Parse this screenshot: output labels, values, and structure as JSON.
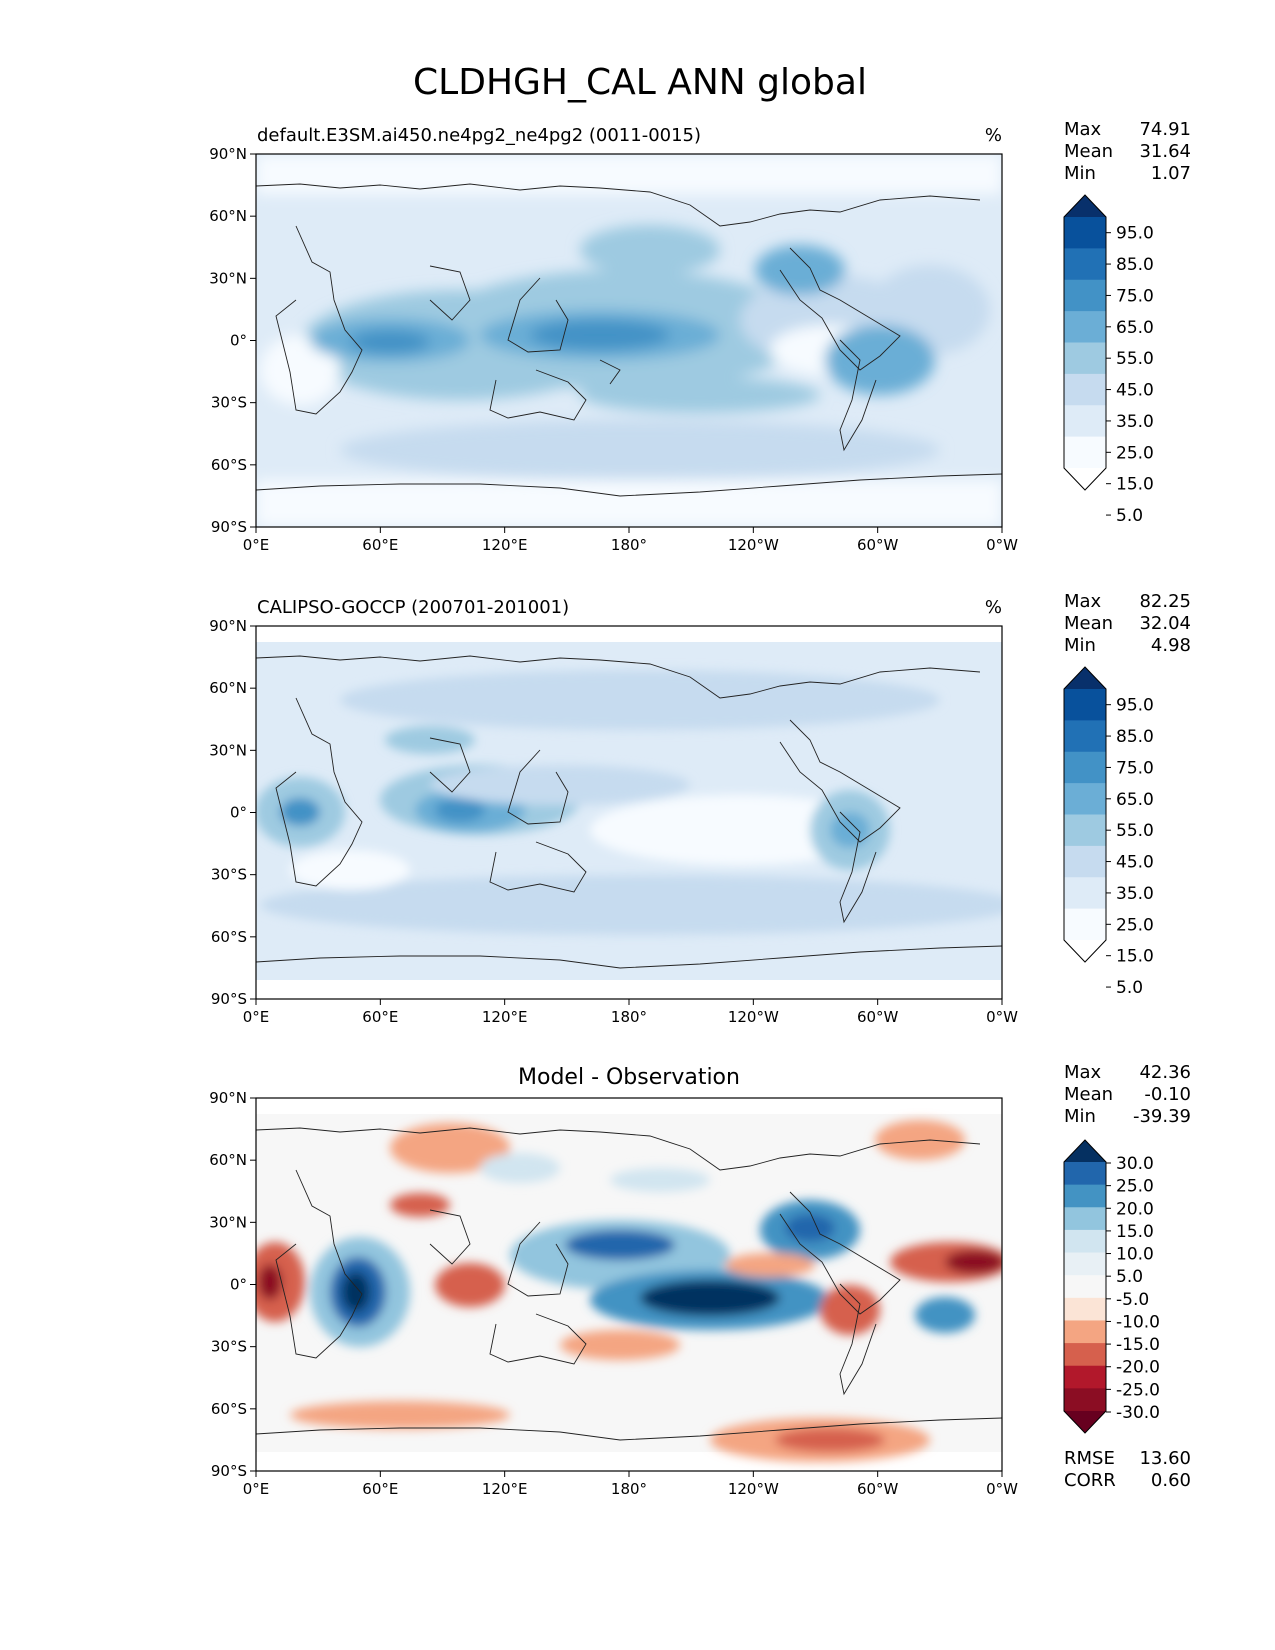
{
  "title": "CLDHGH_CAL ANN global",
  "axes": {
    "lat_ticks": [
      "90°N",
      "60°N",
      "30°N",
      "0°",
      "30°S",
      "60°S",
      "90°S"
    ],
    "lon_ticks": [
      "0°E",
      "60°E",
      "120°E",
      "180°",
      "120°W",
      "60°W",
      "0°W"
    ]
  },
  "chart_data": [
    {
      "type": "heatmap",
      "title": "default.E3SM.ai450.ne4pg2_ne4pg2 (0011-0015)",
      "units": "%",
      "stats": {
        "max_label": "Max",
        "max": "74.91",
        "mean_label": "Mean",
        "mean": "31.64",
        "min_label": "Min",
        "min": "1.07"
      },
      "colorbar": {
        "levels": [
          5,
          15,
          25,
          35,
          45,
          55,
          65,
          75,
          85,
          95
        ],
        "labels": [
          "95.0",
          "85.0",
          "75.0",
          "65.0",
          "55.0",
          "45.0",
          "35.0",
          "25.0",
          "15.0",
          "5.0"
        ],
        "colors": [
          "#08306b",
          "#08519c",
          "#2171b5",
          "#4292c6",
          "#6baed6",
          "#9ecae1",
          "#c6dbef",
          "#deebf7",
          "#f7fbff",
          "#ffffff"
        ]
      },
      "xlim": [
        0,
        360
      ],
      "ylim": [
        -90,
        90
      ]
    },
    {
      "type": "heatmap",
      "title": "CALIPSO-GOCCP (200701-201001)",
      "units": "%",
      "stats": {
        "max_label": "Max",
        "max": "82.25",
        "mean_label": "Mean",
        "mean": "32.04",
        "min_label": "Min",
        "min": "4.98"
      },
      "colorbar": {
        "levels": [
          5,
          15,
          25,
          35,
          45,
          55,
          65,
          75,
          85,
          95
        ],
        "labels": [
          "95.0",
          "85.0",
          "75.0",
          "65.0",
          "55.0",
          "45.0",
          "35.0",
          "25.0",
          "15.0",
          "5.0"
        ],
        "colors": [
          "#08306b",
          "#08519c",
          "#2171b5",
          "#4292c6",
          "#6baed6",
          "#9ecae1",
          "#c6dbef",
          "#deebf7",
          "#f7fbff",
          "#ffffff"
        ]
      },
      "xlim": [
        0,
        360
      ],
      "ylim": [
        -90,
        90
      ]
    },
    {
      "type": "heatmap",
      "title": "Model - Observation",
      "units": "",
      "stats": {
        "max_label": "Max",
        "max": "42.36",
        "mean_label": "Mean",
        "mean": "-0.10",
        "min_label": "Min",
        "min": "-39.39"
      },
      "metrics": {
        "rmse_label": "RMSE",
        "rmse": "13.60",
        "corr_label": "CORR",
        "corr": "0.60"
      },
      "colorbar": {
        "levels": [
          -30,
          -25,
          -20,
          -15,
          -10,
          -5,
          5,
          10,
          15,
          20,
          25,
          30
        ],
        "labels": [
          "30.0",
          "25.0",
          "20.0",
          "15.0",
          "10.0",
          "5.0",
          "-5.0",
          "-10.0",
          "-15.0",
          "-20.0",
          "-25.0",
          "-30.0"
        ],
        "colors": [
          "#053061",
          "#2166ac",
          "#4393c3",
          "#92c5de",
          "#d1e5f0",
          "#e8f0f5",
          "#f7f7f7",
          "#fbe4d6",
          "#f4a582",
          "#d6604d",
          "#b2182b",
          "#8b0d23",
          "#67001f"
        ]
      },
      "xlim": [
        0,
        360
      ],
      "ylim": [
        -90,
        90
      ]
    }
  ]
}
